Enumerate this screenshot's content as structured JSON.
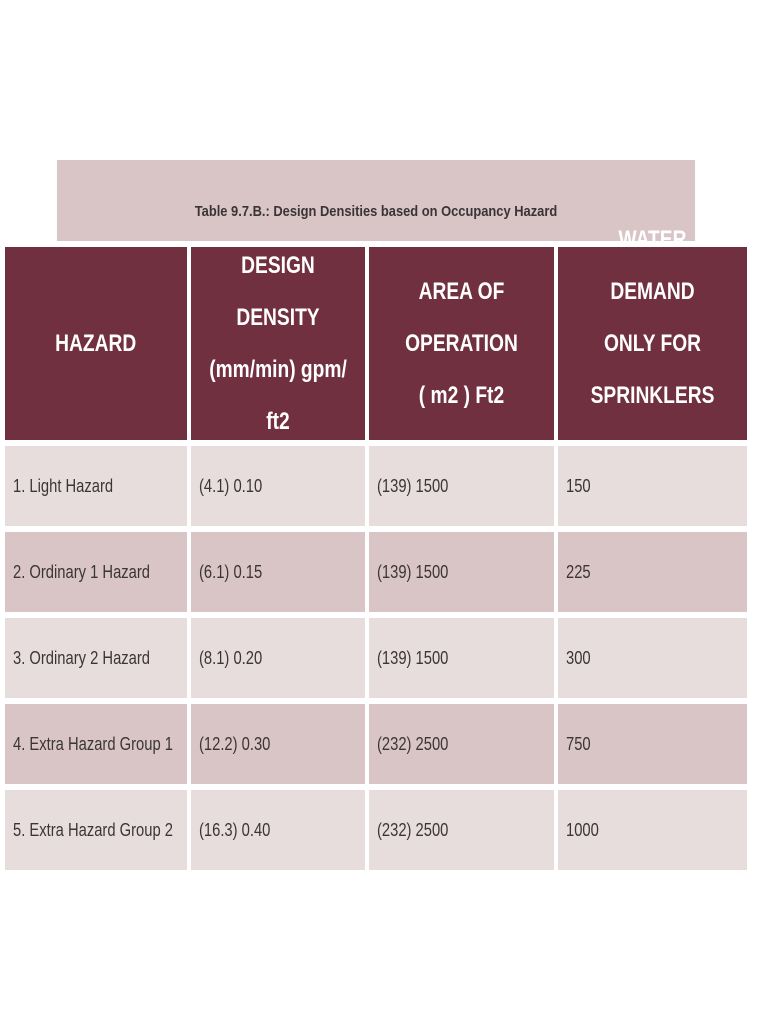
{
  "table": {
    "caption": "Table 9.7.B.: Design Densities based on Occupancy Hazard",
    "headers": [
      "HAZARD",
      "DESIGN DENSITY\n(mm/min) gpm/\nft2",
      "AREA OF\nOPERATION\n( m2 ) Ft2",
      "WATER DEMAND\nONLY FOR\nSPRINKLERS\ngpm"
    ],
    "rows": [
      [
        "1. Light Hazard",
        "(4.1) 0.10",
        "(139) 1500",
        "150"
      ],
      [
        "2. Ordinary 1 Hazard",
        "(6.1) 0.15",
        "(139) 1500",
        "225"
      ],
      [
        "3. Ordinary 2 Hazard",
        "(8.1) 0.20",
        "(139) 1500",
        "300"
      ],
      [
        "4. Extra Hazard Group 1",
        "(12.2) 0.30",
        "(232) 2500",
        "750"
      ],
      [
        "5. Extra Hazard Group 2",
        "(16.3) 0.40",
        "(232) 2500",
        "1000"
      ]
    ],
    "colors": {
      "header_bg": "#713040",
      "caption_bg": "#d9c5c6",
      "row_light": "#e8dddd",
      "row_dark": "#d9c5c6"
    }
  }
}
